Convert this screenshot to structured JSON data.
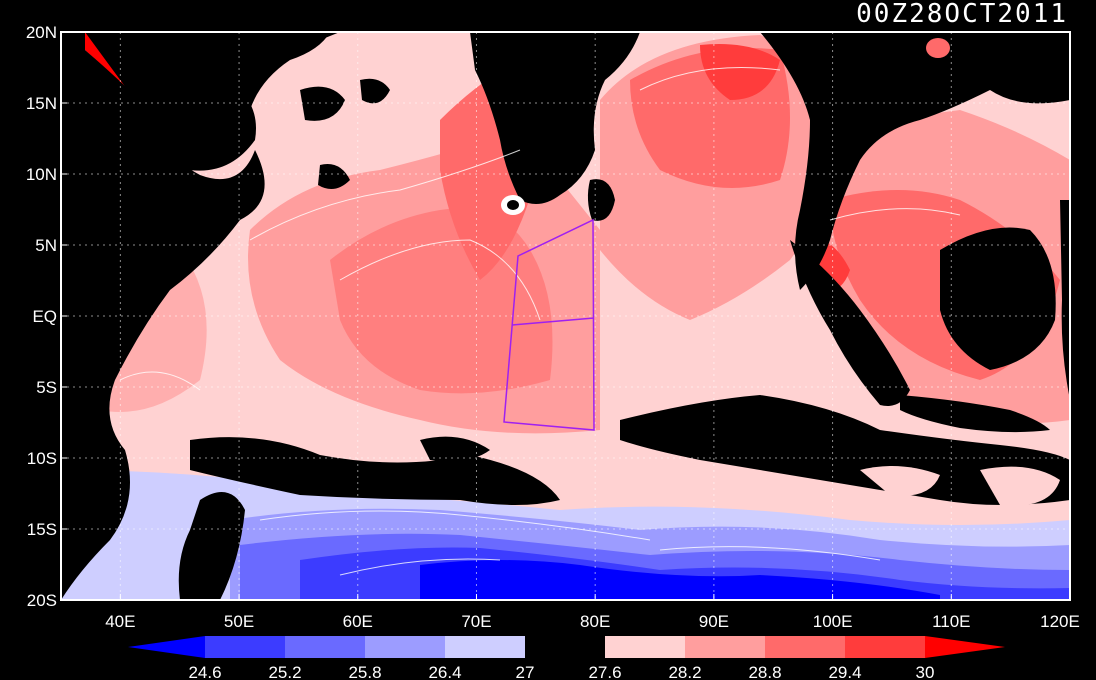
{
  "title": "00Z28OCT2011",
  "map": {
    "lon_range": [
      35,
      120
    ],
    "lat_range": [
      -20,
      20
    ],
    "lon_ticks": [
      "40E",
      "50E",
      "60E",
      "70E",
      "80E",
      "90E",
      "100E",
      "110E",
      "120E"
    ],
    "lat_ticks": [
      "20N",
      "15N",
      "10N",
      "5N",
      "EQ",
      "5S",
      "10S",
      "15S",
      "20S"
    ],
    "grid": true,
    "land_color": "#000000"
  },
  "colorbar": {
    "labels": [
      "24.6",
      "25.2",
      "25.8",
      "26.4",
      "27",
      "27.6",
      "28.2",
      "28.8",
      "29.4",
      "30"
    ],
    "colors": [
      "#0000ff",
      "#3c3cff",
      "#6a6aff",
      "#9c9cff",
      "#ceceff",
      "#000000",
      "#ffd2d2",
      "#ff9e9e",
      "#ff6a6a",
      "#ff3c3c",
      "#ff0000"
    ]
  },
  "palette": {
    "deep_blue": "#0000ff",
    "blue": "#3c3cff",
    "mid_blue": "#6a6aff",
    "light_blue": "#9c9cff",
    "pale_blue": "#ceceff",
    "pale_red": "#ffd2d2",
    "light_red": "#ff9e9e",
    "mid_red": "#ff6a6a",
    "red": "#ff3c3c",
    "deep_red": "#ff0000",
    "box": "#a020f0",
    "contour": "#ffffff"
  }
}
